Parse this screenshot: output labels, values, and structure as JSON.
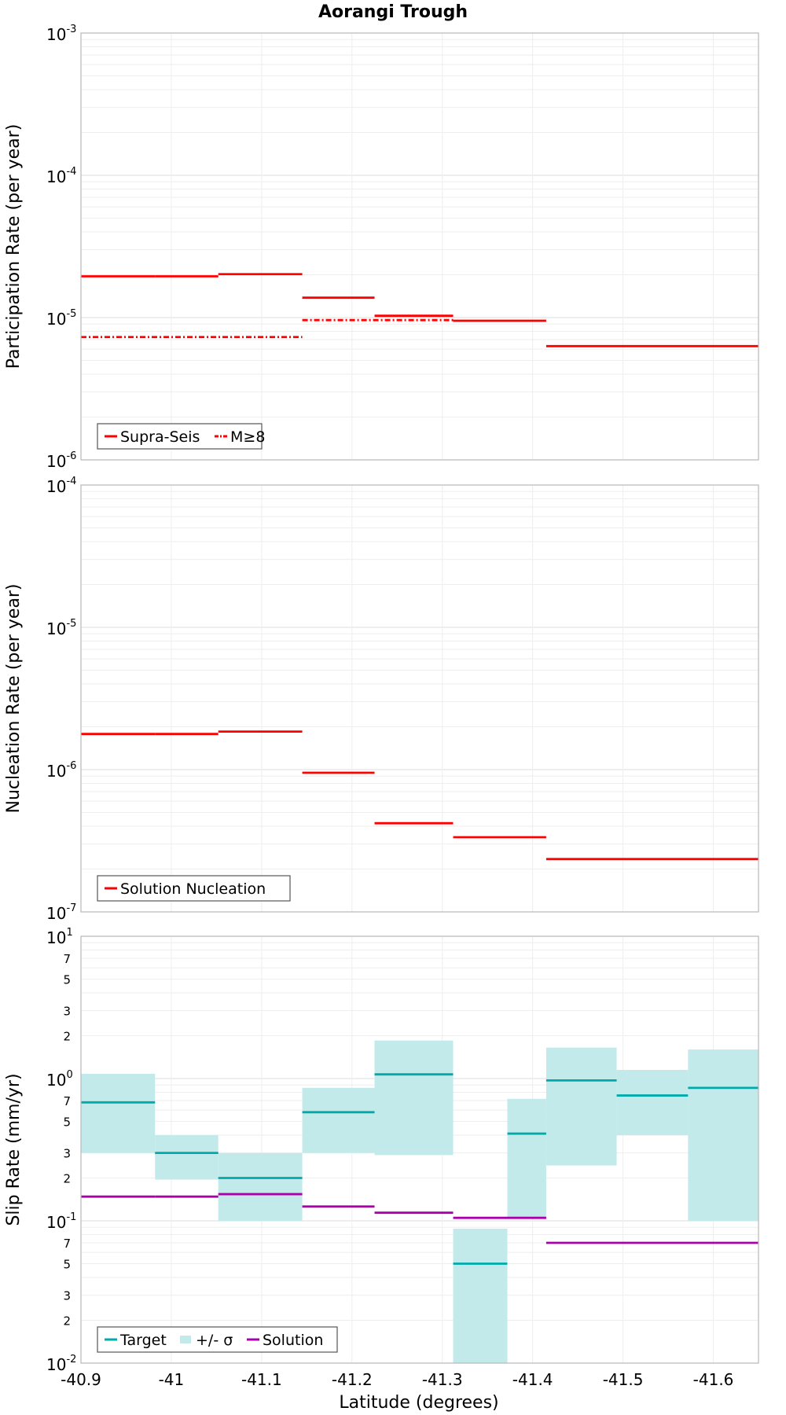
{
  "chart_data": [
    {
      "type": "line",
      "title": "Aorangi Trough",
      "xlabel": "",
      "ylabel": "Participation Rate (per year)",
      "yscale": "log",
      "ylim": [
        1e-06,
        0.001
      ],
      "xlim": [
        -40.9,
        -41.65
      ],
      "x_ticks": [
        "-40.9",
        "-41",
        "-41.1",
        "-41.2",
        "-41.3",
        "-41.4",
        "-41.5",
        "-41.6"
      ],
      "y_ticks": [
        {
          "base": "10",
          "exp": "-6"
        },
        {
          "base": "10",
          "exp": "-5"
        },
        {
          "base": "10",
          "exp": "-4"
        },
        {
          "base": "10",
          "exp": "-3"
        }
      ],
      "grid": true,
      "legend_position": "bottom-left",
      "series": [
        {
          "name": "Supra-Seis",
          "color": "#ff0000",
          "style": "solid",
          "steps": [
            {
              "x": [
                -40.9,
                -40.982
              ],
              "y": 1.95e-05
            },
            {
              "x": [
                -40.982,
                -41.052
              ],
              "y": 1.95e-05
            },
            {
              "x": [
                -41.052,
                -41.145
              ],
              "y": 2.02e-05
            },
            {
              "x": [
                -41.145,
                -41.225
              ],
              "y": 1.38e-05
            },
            {
              "x": [
                -41.225,
                -41.312
              ],
              "y": 1.03e-05
            },
            {
              "x": [
                -41.312,
                -41.415
              ],
              "y": 9.5e-06
            },
            {
              "x": [
                -41.415,
                -41.65
              ],
              "y": 6.3e-06
            }
          ]
        },
        {
          "name": "M≥8",
          "color": "#ff0000",
          "style": "dash-dot",
          "steps": [
            {
              "x": [
                -40.9,
                -41.145
              ],
              "y": 7.3e-06
            },
            {
              "x": [
                -41.145,
                -41.312
              ],
              "y": 9.6e-06
            }
          ]
        }
      ]
    },
    {
      "type": "line",
      "title": "",
      "xlabel": "",
      "ylabel": "Nucleation Rate (per year)",
      "yscale": "log",
      "ylim": [
        1e-07,
        0.0001
      ],
      "xlim": [
        -40.9,
        -41.65
      ],
      "y_ticks": [
        {
          "base": "10",
          "exp": "-7"
        },
        {
          "base": "10",
          "exp": "-6"
        },
        {
          "base": "10",
          "exp": "-5"
        },
        {
          "base": "10",
          "exp": "-4"
        }
      ],
      "grid": true,
      "legend_position": "bottom-left",
      "series": [
        {
          "name": "Solution Nucleation",
          "color": "#ff0000",
          "style": "solid",
          "steps": [
            {
              "x": [
                -40.9,
                -40.982
              ],
              "y": 1.78e-06
            },
            {
              "x": [
                -40.982,
                -41.052
              ],
              "y": 1.78e-06
            },
            {
              "x": [
                -41.052,
                -41.145
              ],
              "y": 1.85e-06
            },
            {
              "x": [
                -41.145,
                -41.225
              ],
              "y": 9.5e-07
            },
            {
              "x": [
                -41.225,
                -41.312
              ],
              "y": 4.2e-07
            },
            {
              "x": [
                -41.312,
                -41.415
              ],
              "y": 3.35e-07
            },
            {
              "x": [
                -41.415,
                -41.65
              ],
              "y": 2.35e-07
            }
          ]
        }
      ]
    },
    {
      "type": "line",
      "title": "",
      "xlabel": "Latitude (degrees)",
      "ylabel": "Slip Rate (mm/yr)",
      "yscale": "log",
      "ylim": [
        0.01,
        10
      ],
      "xlim": [
        -40.9,
        -41.65
      ],
      "y_ticks": [
        {
          "base": "10",
          "exp": "-2"
        },
        {
          "base": "10",
          "exp": "-1"
        },
        {
          "base": "10",
          "exp": "0"
        },
        {
          "base": "10",
          "exp": "1"
        }
      ],
      "minor_tick_labels": [
        "2",
        "3",
        "5",
        "7"
      ],
      "grid": true,
      "legend_position": "bottom-left",
      "series": [
        {
          "name": "Target",
          "color": "#00aaaa",
          "style": "solid",
          "steps": [
            {
              "x": [
                -40.9,
                -40.982
              ],
              "y": 0.68
            },
            {
              "x": [
                -40.982,
                -41.052
              ],
              "y": 0.3
            },
            {
              "x": [
                -41.052,
                -41.145
              ],
              "y": 0.2
            },
            {
              "x": [
                -41.145,
                -41.225
              ],
              "y": 0.58
            },
            {
              "x": [
                -41.225,
                -41.312
              ],
              "y": 1.07
            },
            {
              "x": [
                -41.312,
                -41.372
              ],
              "y": 0.05
            },
            {
              "x": [
                -41.372,
                -41.415
              ],
              "y": 0.41
            },
            {
              "x": [
                -41.415,
                -41.493
              ],
              "y": 0.97
            },
            {
              "x": [
                -41.493,
                -41.572
              ],
              "y": 0.76
            },
            {
              "x": [
                -41.572,
                -41.65
              ],
              "y": 0.86
            }
          ]
        },
        {
          "name": "+/- σ",
          "color": "#c2eaea",
          "style": "band",
          "bands": [
            {
              "x": [
                -40.9,
                -40.982
              ],
              "lo": 0.3,
              "hi": 1.08
            },
            {
              "x": [
                -40.982,
                -41.052
              ],
              "lo": 0.195,
              "hi": 0.4
            },
            {
              "x": [
                -41.052,
                -41.145
              ],
              "lo": 0.1,
              "hi": 0.3
            },
            {
              "x": [
                -41.145,
                -41.225
              ],
              "lo": 0.3,
              "hi": 0.86
            },
            {
              "x": [
                -41.225,
                -41.312
              ],
              "lo": 0.29,
              "hi": 1.85
            },
            {
              "x": [
                -41.312,
                -41.372
              ],
              "lo": 0.01,
              "hi": 0.088
            },
            {
              "x": [
                -41.372,
                -41.415
              ],
              "lo": 0.105,
              "hi": 0.72
            },
            {
              "x": [
                -41.415,
                -41.493
              ],
              "lo": 0.245,
              "hi": 1.65
            },
            {
              "x": [
                -41.493,
                -41.572
              ],
              "lo": 0.4,
              "hi": 1.15
            },
            {
              "x": [
                -41.572,
                -41.65
              ],
              "lo": 0.1,
              "hi": 1.6
            }
          ]
        },
        {
          "name": "Solution",
          "color": "#aa00aa",
          "style": "solid",
          "steps": [
            {
              "x": [
                -40.9,
                -40.982
              ],
              "y": 0.148
            },
            {
              "x": [
                -40.982,
                -41.052
              ],
              "y": 0.148
            },
            {
              "x": [
                -41.052,
                -41.145
              ],
              "y": 0.154
            },
            {
              "x": [
                -41.145,
                -41.225
              ],
              "y": 0.126
            },
            {
              "x": [
                -41.225,
                -41.312
              ],
              "y": 0.114
            },
            {
              "x": [
                -41.312,
                -41.415
              ],
              "y": 0.105
            },
            {
              "x": [
                -41.415,
                -41.65
              ],
              "y": 0.07
            }
          ]
        }
      ]
    }
  ],
  "legends": {
    "panel1": [
      "Supra-Seis",
      "M≥8"
    ],
    "panel2": [
      "Solution Nucleation"
    ],
    "panel3": [
      "Target",
      "+/- σ",
      "Solution"
    ]
  }
}
